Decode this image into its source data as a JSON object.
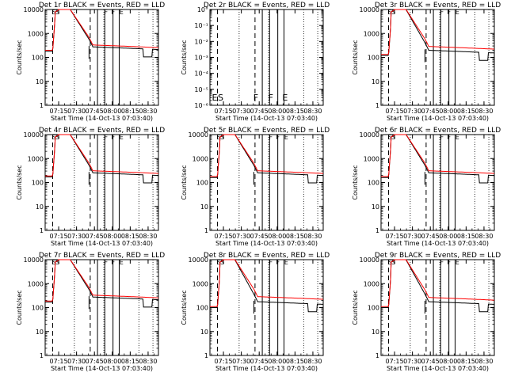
{
  "chart_data": {
    "type": "line",
    "panel_titles": [
      "Det 1r BLACK = Events, RED = LLD",
      "Det 2r BLACK = Events, RED = LLD",
      "Det 3r BLACK = Events, RED = LLD",
      "Det 4r BLACK = Events, RED = LLD",
      "Det 5r BLACK = Events, RED = LLD",
      "Det 6r BLACK = Events, RED = LLD",
      "Det 7r BLACK = Events, RED = LLD",
      "Det 8r BLACK = Events, RED = LLD",
      "Det 9r BLACK = Events, RED = LLD"
    ],
    "xlabel": "Start Time (14-Oct-13 07:03:40)",
    "ylabel": "Counts/sec",
    "x_ticks": [
      "07:15",
      "07:30",
      "07:45",
      "08:00",
      "08:15",
      "08:30"
    ],
    "x_tick_minutes": [
      11.33,
      26.33,
      41.33,
      56.33,
      71.33,
      86.33
    ],
    "x_range_minutes": [
      0,
      95
    ],
    "y_scale": "log",
    "y_ticks_main": [
      "1",
      "10",
      "100",
      "1000",
      "10000"
    ],
    "y_ticks_det2": [
      "10°",
      "10⁻¹",
      "10⁻²",
      "10⁻³",
      "10⁻⁴",
      "10⁻⁵",
      "10⁻⁶"
    ],
    "dashed_vlines_minutes": [
      6.3,
      37.8
    ],
    "solid_vlines_minutes": [
      43.9,
      50.0,
      56.9,
      62.1
    ],
    "dotted_vlines_minutes": [
      24.5,
      49.2,
      78.6,
      90.4
    ],
    "det2_letters": [
      "E",
      "S",
      "F",
      "F",
      "E"
    ],
    "series": [
      {
        "name": "Events",
        "color": "#000000"
      },
      {
        "name": "LLD",
        "color": "#ff0000"
      }
    ],
    "event_level": [
      180,
      null,
      120,
      170,
      160,
      160,
      170,
      100,
      100
    ],
    "post_level": [
      250,
      null,
      180,
      230,
      230,
      230,
      250,
      160,
      160
    ],
    "lld_post_level": [
      300,
      null,
      260,
      280,
      280,
      280,
      300,
      260,
      240
    ]
  }
}
